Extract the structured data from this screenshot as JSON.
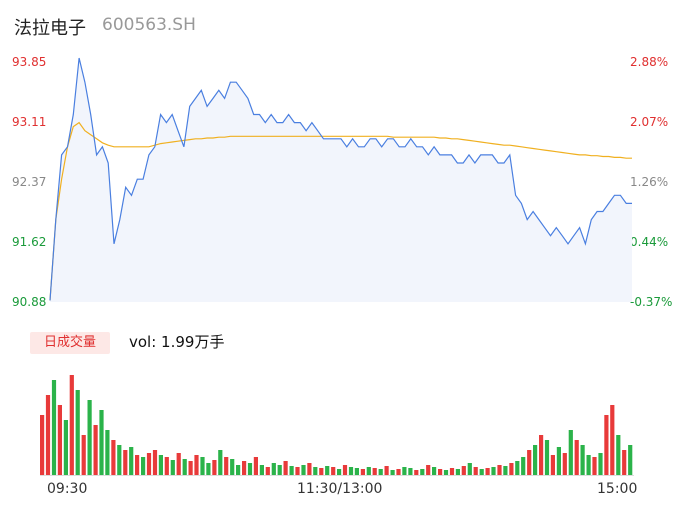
{
  "header": {
    "name": "法拉电子",
    "code": "600563.SH"
  },
  "volume_tab": "日成交量",
  "volume_text": "vol: 1.99万手",
  "chart_data": [
    {
      "type": "line",
      "y_tick_labels": [
        "93.85",
        "93.11",
        "92.37",
        "91.62",
        "90.88"
      ],
      "pct_tick_labels": [
        "2.88%",
        "2.07%",
        "1.26%",
        "0.44%",
        "-0.37%"
      ],
      "ylim": [
        90.88,
        93.85
      ],
      "x_tick_labels": [
        "09:30",
        "11:30/13:00",
        "15:00"
      ],
      "series": [
        {
          "role": "price",
          "color": "#4a7fe0",
          "values": [
            90.9,
            91.9,
            92.7,
            92.8,
            93.2,
            93.9,
            93.6,
            93.2,
            92.7,
            92.8,
            92.6,
            91.6,
            91.9,
            92.3,
            92.2,
            92.4,
            92.4,
            92.7,
            92.8,
            93.2,
            93.1,
            93.2,
            93.0,
            92.8,
            93.3,
            93.4,
            93.5,
            93.3,
            93.4,
            93.5,
            93.4,
            93.6,
            93.6,
            93.5,
            93.4,
            93.2,
            93.2,
            93.1,
            93.2,
            93.1,
            93.1,
            93.2,
            93.1,
            93.1,
            93.0,
            93.1,
            93.0,
            92.9,
            92.9,
            92.9,
            92.9,
            92.8,
            92.9,
            92.8,
            92.8,
            92.9,
            92.9,
            92.8,
            92.9,
            92.9,
            92.8,
            92.8,
            92.9,
            92.8,
            92.8,
            92.7,
            92.8,
            92.7,
            92.7,
            92.7,
            92.6,
            92.6,
            92.7,
            92.6,
            92.7,
            92.7,
            92.7,
            92.6,
            92.6,
            92.7,
            92.2,
            92.1,
            91.9,
            92.0,
            91.9,
            91.8,
            91.7,
            91.8,
            91.7,
            91.6,
            91.7,
            91.8,
            91.6,
            91.9,
            92.0,
            92.0,
            92.1,
            92.2,
            92.2,
            92.1,
            92.1
          ],
          "value_labels": {
            "93.85": "93.85"
          }
        },
        {
          "role": "average",
          "color": "#f0b020",
          "values": [
            90.9,
            91.9,
            92.4,
            92.8,
            93.05,
            93.1,
            93.0,
            92.95,
            92.9,
            92.85,
            92.82,
            92.8,
            92.8,
            92.8,
            92.8,
            92.8,
            92.8,
            92.8,
            92.82,
            92.84,
            92.85,
            92.86,
            92.87,
            92.88,
            92.89,
            92.9,
            92.9,
            92.91,
            92.91,
            92.92,
            92.92,
            92.93,
            92.93,
            92.93,
            92.93,
            92.93,
            92.93,
            92.93,
            92.93,
            92.93,
            92.93,
            92.93,
            92.93,
            92.93,
            92.93,
            92.93,
            92.93,
            92.93,
            92.93,
            92.93,
            92.93,
            92.93,
            92.93,
            92.93,
            92.93,
            92.93,
            92.93,
            92.93,
            92.93,
            92.92,
            92.92,
            92.92,
            92.92,
            92.92,
            92.92,
            92.92,
            92.92,
            92.91,
            92.91,
            92.9,
            92.9,
            92.89,
            92.88,
            92.87,
            92.86,
            92.85,
            92.84,
            92.83,
            92.82,
            92.82,
            92.81,
            92.8,
            92.79,
            92.78,
            92.77,
            92.76,
            92.75,
            92.74,
            92.73,
            92.72,
            92.71,
            92.7,
            92.7,
            92.69,
            92.69,
            92.68,
            92.68,
            92.67,
            92.67,
            92.66,
            92.66
          ]
        }
      ]
    },
    {
      "type": "bar",
      "x_tick_labels": [
        "09:30",
        "11:30/13:00",
        "15:00"
      ],
      "unit": "万手",
      "total": "1.99",
      "values": [
        60,
        80,
        95,
        70,
        55,
        100,
        85,
        40,
        75,
        50,
        65,
        45,
        35,
        30,
        25,
        28,
        20,
        18,
        22,
        25,
        20,
        18,
        15,
        22,
        16,
        14,
        20,
        18,
        12,
        15,
        25,
        18,
        16,
        10,
        14,
        12,
        18,
        10,
        8,
        12,
        10,
        14,
        9,
        8,
        10,
        12,
        8,
        7,
        9,
        8,
        6,
        10,
        8,
        7,
        6,
        8,
        7,
        6,
        9,
        5,
        6,
        8,
        7,
        5,
        6,
        10,
        8,
        6,
        5,
        7,
        6,
        9,
        12,
        8,
        6,
        7,
        8,
        10,
        9,
        12,
        14,
        18,
        25,
        30,
        40,
        35,
        20,
        28,
        22,
        45,
        35,
        30,
        20,
        18,
        22,
        60,
        70,
        40,
        25,
        30
      ],
      "colors": [
        "r",
        "r",
        "g",
        "r",
        "g",
        "r",
        "g",
        "r",
        "g",
        "r",
        "g",
        "g",
        "r",
        "g",
        "r",
        "g",
        "r",
        "g",
        "r",
        "r",
        "g",
        "r",
        "g",
        "r",
        "g",
        "r",
        "r",
        "g",
        "g",
        "r",
        "g",
        "r",
        "g",
        "g",
        "r",
        "g",
        "r",
        "g",
        "r",
        "g",
        "g",
        "r",
        "g",
        "r",
        "g",
        "r",
        "g",
        "r",
        "g",
        "r",
        "g",
        "r",
        "g",
        "g",
        "r",
        "g",
        "r",
        "g",
        "r",
        "g",
        "r",
        "g",
        "g",
        "r",
        "g",
        "r",
        "g",
        "r",
        "g",
        "r",
        "g",
        "r",
        "g",
        "r",
        "g",
        "r",
        "g",
        "r",
        "g",
        "r",
        "g",
        "g",
        "r",
        "g",
        "r",
        "g",
        "r",
        "g",
        "r",
        "g",
        "r",
        "g",
        "g",
        "r",
        "g",
        "r",
        "r",
        "g",
        "r",
        "g"
      ]
    }
  ]
}
